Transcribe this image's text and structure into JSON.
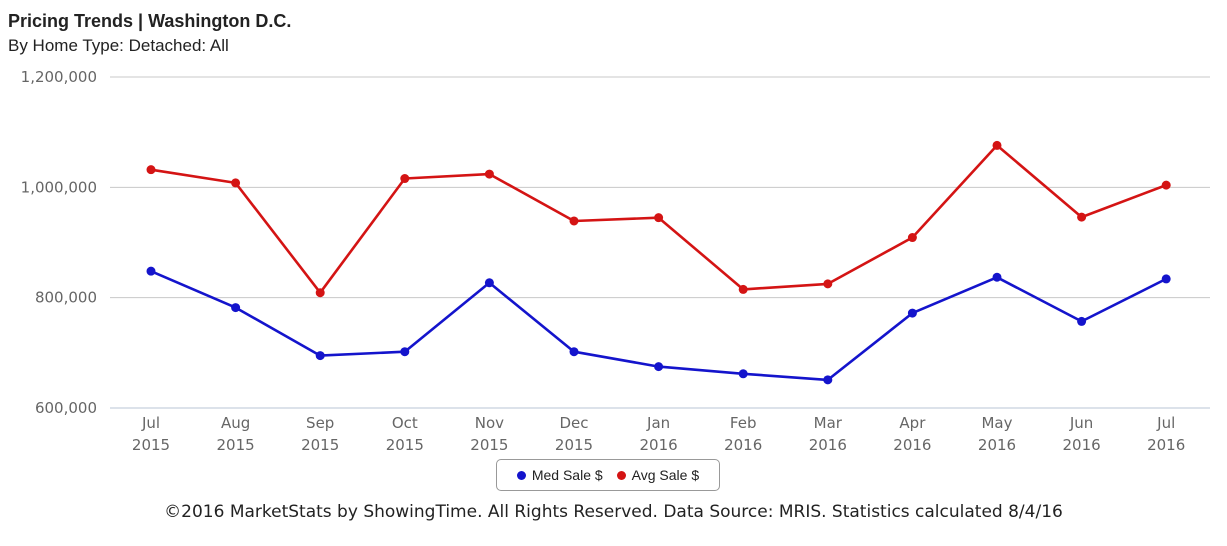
{
  "chart_data": {
    "type": "line",
    "title": "Pricing Trends | Washington D.C.",
    "subtitle": "By Home Type: Detached: All",
    "categories": [
      [
        "Jul",
        "2015"
      ],
      [
        "Aug",
        "2015"
      ],
      [
        "Sep",
        "2015"
      ],
      [
        "Oct",
        "2015"
      ],
      [
        "Nov",
        "2015"
      ],
      [
        "Dec",
        "2015"
      ],
      [
        "Jan",
        "2016"
      ],
      [
        "Feb",
        "2016"
      ],
      [
        "Mar",
        "2016"
      ],
      [
        "Apr",
        "2016"
      ],
      [
        "May",
        "2016"
      ],
      [
        "Jun",
        "2016"
      ],
      [
        "Jul",
        "2016"
      ]
    ],
    "series": [
      {
        "name": "Med Sale $",
        "color": "#1414cc",
        "values": [
          848000,
          782000,
          695000,
          702000,
          827000,
          702000,
          675000,
          662000,
          651000,
          772000,
          837000,
          757000,
          834000
        ]
      },
      {
        "name": "Avg Sale $",
        "color": "#d41414",
        "values": [
          1032000,
          1008000,
          809000,
          1016000,
          1024000,
          939000,
          945000,
          815000,
          825000,
          909000,
          1076000,
          946000,
          1004000
        ]
      }
    ],
    "ylim": [
      600000,
      1200000
    ],
    "yticks": [
      600000,
      800000,
      1000000,
      1200000
    ],
    "ytick_labels": [
      "600,000",
      "800,000",
      "1,000,000",
      "1,200,000"
    ],
    "grid": true,
    "legend_position": "bottom-center"
  },
  "footer": "©2016 MarketStats by ShowingTime. All Rights Reserved. Data Source: MRIS. Statistics calculated 8/4/16"
}
